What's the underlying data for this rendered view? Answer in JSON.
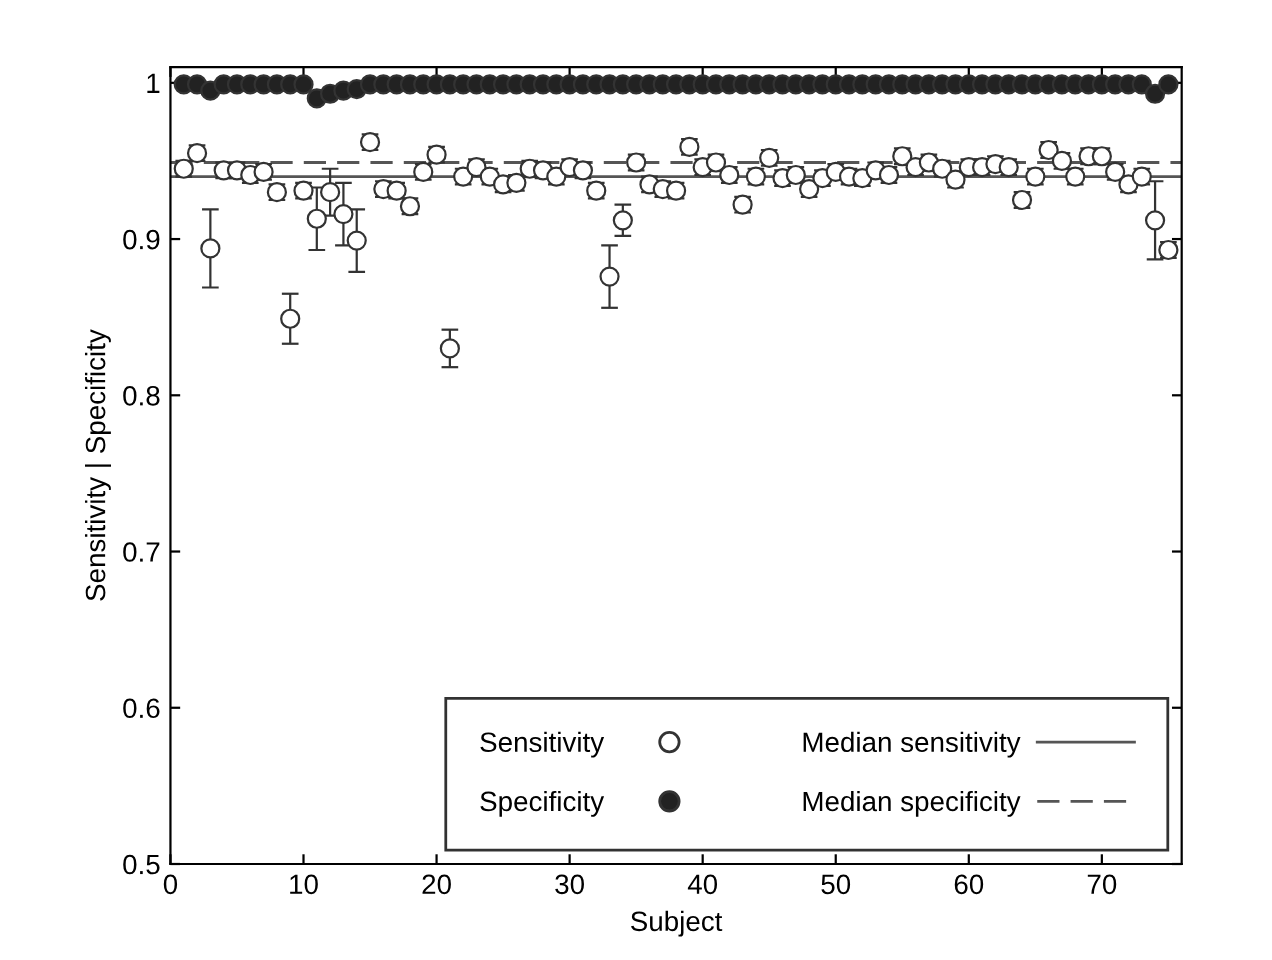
{
  "chart_data": {
    "type": "scatter",
    "xlabel": "Subject",
    "ylabel": "Sensitivity | Specificity",
    "xlim": [
      0,
      76
    ],
    "xticks": [
      0,
      10,
      20,
      30,
      40,
      50,
      60,
      70
    ],
    "ylim": [
      0.5,
      1.01
    ],
    "yticks": [
      0.5,
      0.6,
      0.7,
      0.8,
      0.9,
      {
        "value": 1.0,
        "label": "1"
      }
    ],
    "grid": false,
    "legend": "bottom right",
    "series": [
      {
        "name": "Sensitivity",
        "marker": "circle",
        "color": "#ffffff",
        "x": [
          1,
          2,
          3,
          4,
          5,
          6,
          7,
          8,
          9,
          10,
          11,
          12,
          13,
          14,
          15,
          16,
          17,
          18,
          19,
          20,
          21,
          22,
          23,
          24,
          25,
          26,
          27,
          28,
          29,
          30,
          31,
          32,
          33,
          34,
          35,
          36,
          37,
          38,
          39,
          40,
          41,
          42,
          43,
          44,
          45,
          46,
          47,
          48,
          49,
          50,
          51,
          52,
          53,
          54,
          55,
          56,
          57,
          58,
          59,
          60,
          61,
          62,
          63,
          64,
          65,
          66,
          67,
          68,
          69,
          70,
          71,
          72,
          73,
          74,
          75
        ],
        "values": [
          0.945,
          0.955,
          0.894,
          0.944,
          0.944,
          0.941,
          0.943,
          0.93,
          0.849,
          0.931,
          0.913,
          0.93,
          0.916,
          0.899,
          0.962,
          0.932,
          0.931,
          0.921,
          0.943,
          0.954,
          0.83,
          0.94,
          0.946,
          0.94,
          0.935,
          0.936,
          0.945,
          0.944,
          0.94,
          0.946,
          0.944,
          0.931,
          0.876,
          0.912,
          0.949,
          0.935,
          0.932,
          0.931,
          0.959,
          0.946,
          0.949,
          0.941,
          0.922,
          0.94,
          0.952,
          0.939,
          0.941,
          0.932,
          0.939,
          0.943,
          0.94,
          0.939,
          0.944,
          0.941,
          0.953,
          0.946,
          0.949,
          0.945,
          0.938,
          0.946,
          0.946,
          0.948,
          0.946,
          0.925,
          0.94,
          0.957,
          0.95,
          0.94,
          0.953,
          0.953,
          0.943,
          0.935,
          0.94,
          0.912,
          0.893
        ],
        "errors": [
          0.005,
          0.005,
          0.025,
          0.005,
          0.005,
          0.005,
          0.005,
          0.005,
          0.016,
          0.005,
          0.02,
          0.015,
          0.02,
          0.02,
          0.005,
          0.005,
          0.005,
          0.005,
          0.005,
          0.005,
          0.012,
          0.005,
          0.005,
          0.005,
          0.005,
          0.005,
          0.005,
          0.005,
          0.005,
          0.005,
          0.005,
          0.005,
          0.02,
          0.01,
          0.005,
          0.005,
          0.005,
          0.005,
          0.005,
          0.005,
          0.005,
          0.005,
          0.005,
          0.005,
          0.005,
          0.005,
          0.005,
          0.005,
          0.005,
          0.005,
          0.005,
          0.005,
          0.005,
          0.005,
          0.005,
          0.005,
          0.005,
          0.005,
          0.005,
          0.005,
          0.005,
          0.005,
          0.005,
          0.005,
          0.005,
          0.005,
          0.005,
          0.005,
          0.005,
          0.005,
          0.005,
          0.005,
          0.005,
          0.025,
          0.005
        ]
      },
      {
        "name": "Specificity",
        "marker": "circle",
        "color": "#222222",
        "x": [
          1,
          2,
          3,
          4,
          5,
          6,
          7,
          8,
          9,
          10,
          11,
          12,
          13,
          14,
          15,
          16,
          17,
          18,
          19,
          20,
          21,
          22,
          23,
          24,
          25,
          26,
          27,
          28,
          29,
          30,
          31,
          32,
          33,
          34,
          35,
          36,
          37,
          38,
          39,
          40,
          41,
          42,
          43,
          44,
          45,
          46,
          47,
          48,
          49,
          50,
          51,
          52,
          53,
          54,
          55,
          56,
          57,
          58,
          59,
          60,
          61,
          62,
          63,
          64,
          65,
          66,
          67,
          68,
          69,
          70,
          71,
          72,
          73,
          74,
          75
        ],
        "values": [
          0.999,
          0.999,
          0.995,
          0.999,
          0.999,
          0.999,
          0.999,
          0.999,
          0.999,
          0.999,
          0.99,
          0.993,
          0.995,
          0.996,
          0.999,
          0.999,
          0.999,
          0.999,
          0.999,
          0.999,
          0.999,
          0.999,
          0.999,
          0.999,
          0.999,
          0.999,
          0.999,
          0.999,
          0.999,
          0.999,
          0.999,
          0.999,
          0.999,
          0.999,
          0.999,
          0.999,
          0.999,
          0.999,
          0.999,
          0.999,
          0.999,
          0.999,
          0.999,
          0.999,
          0.999,
          0.999,
          0.999,
          0.999,
          0.999,
          0.999,
          0.999,
          0.999,
          0.999,
          0.999,
          0.999,
          0.999,
          0.999,
          0.999,
          0.999,
          0.999,
          0.999,
          0.999,
          0.999,
          0.999,
          0.999,
          0.999,
          0.999,
          0.999,
          0.999,
          0.999,
          0.999,
          0.999,
          0.999,
          0.993,
          0.999
        ]
      },
      {
        "name": "Median sensitivity",
        "type": "line",
        "line_style": "solid",
        "color": "#555555",
        "x": [
          0,
          76
        ],
        "values": [
          0.94,
          0.94
        ]
      },
      {
        "name": "Median specificity",
        "type": "line",
        "line_style": "dashed",
        "color": "#555555",
        "x": [
          0,
          76
        ],
        "values": [
          0.949,
          0.949
        ]
      }
    ]
  }
}
